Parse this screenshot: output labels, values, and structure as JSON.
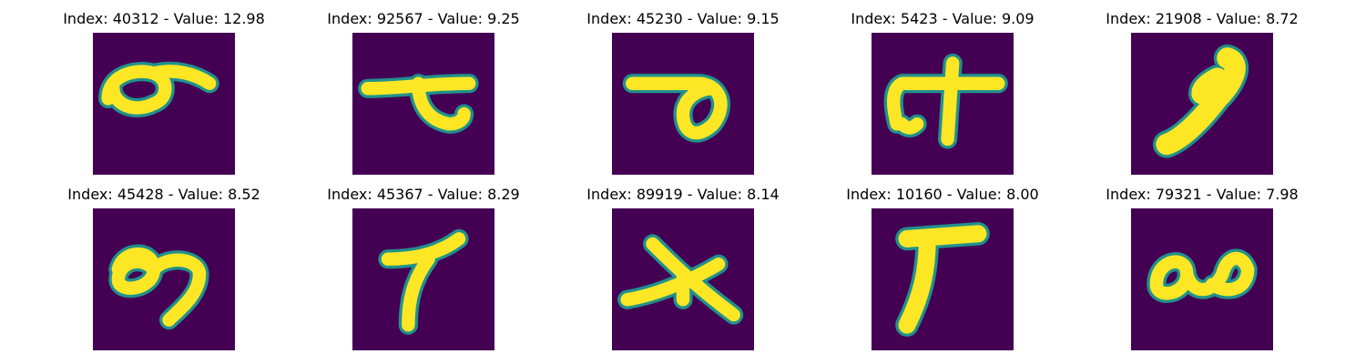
{
  "figure": {
    "panels": [
      {
        "title": "Index: 40312 - Value: 12.98",
        "glyph": "loop-with-tail-glyph"
      },
      {
        "title": "Index: 92567 - Value: 9.25",
        "glyph": "hook-glyph"
      },
      {
        "title": "Index: 45230 - Value: 9.15",
        "glyph": "bar-with-loop-glyph"
      },
      {
        "title": "Index: 5423 - Value: 9.09",
        "glyph": "cross-hook-glyph"
      },
      {
        "title": "Index: 21908 - Value: 8.72",
        "glyph": "thick-stroke-glyph"
      },
      {
        "title": "Index: 45428 - Value: 8.52",
        "glyph": "double-loop-glyph"
      },
      {
        "title": "Index: 45367 - Value: 8.29",
        "glyph": "seven-like-glyph"
      },
      {
        "title": "Index: 89919 - Value: 8.14",
        "glyph": "star-cross-glyph"
      },
      {
        "title": "Index: 10160 - Value: 8.00",
        "glyph": "t-shape-glyph"
      },
      {
        "title": "Index: 79321 - Value: 7.98",
        "glyph": "twin-loop-glyph"
      }
    ],
    "colors": {
      "background": "#440154",
      "stroke": "#fde725",
      "edge": "#21918c"
    }
  }
}
